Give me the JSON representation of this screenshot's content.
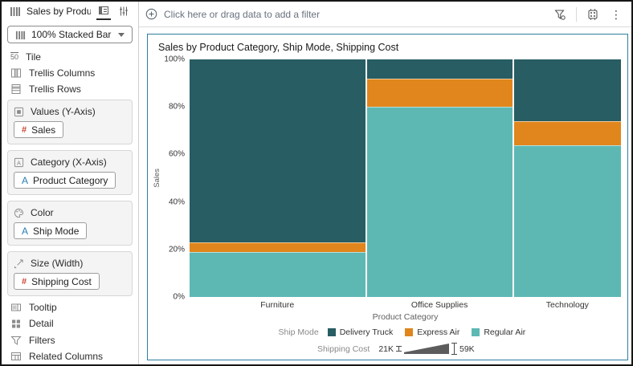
{
  "sidebar": {
    "title": "Sales by Product Ca...",
    "viz_type": "100% Stacked Bar",
    "rows_top": [
      "Tile",
      "Trellis Columns",
      "Trellis Rows"
    ],
    "tile_glyph": "50",
    "sections": [
      {
        "label": "Values (Y-Axis)",
        "pills": [
          {
            "text": "Sales",
            "glyph": "#",
            "type": "measure"
          }
        ]
      },
      {
        "label": "Category (X-Axis)",
        "pills": [
          {
            "text": "Product Category",
            "glyph": "A",
            "type": "attribute"
          }
        ]
      },
      {
        "label": "Color",
        "pills": [
          {
            "text": "Ship Mode",
            "glyph": "A",
            "type": "attribute"
          }
        ]
      },
      {
        "label": "Size (Width)",
        "pills": [
          {
            "text": "Shipping Cost",
            "glyph": "#",
            "type": "measure"
          }
        ]
      }
    ],
    "rows_bottom": [
      "Tooltip",
      "Detail",
      "Filters",
      "Related Columns"
    ]
  },
  "filter_bar": {
    "hint": "Click here or drag data to add a filter",
    "kebab_glyph": "⋮"
  },
  "colors": {
    "selected_viz_border": "#2e7f9e",
    "measure_icon": "#c74634",
    "attribute_icon": "#267db3"
  },
  "chart_data": {
    "type": "bar",
    "subtype": "100% stacked, variable-width (marimekko)",
    "title": "Sales by Product Category, Ship Mode, Shipping Cost",
    "categories": [
      "Furniture",
      "Office Supplies",
      "Technology"
    ],
    "series": [
      {
        "name": "Delivery Truck",
        "color": "#275d63",
        "values": [
          77,
          8,
          26
        ]
      },
      {
        "name": "Express Air",
        "color": "#e0861d",
        "values": [
          4,
          12,
          10
        ]
      },
      {
        "name": "Regular Air",
        "color": "#5db8b4",
        "values": [
          19,
          80,
          64
        ]
      }
    ],
    "bar_width_pct": [
      41,
      34,
      25
    ],
    "xlabel": "Product Category",
    "ylabel": "Sales",
    "ylim": [
      0,
      100
    ],
    "yticks": [
      "0%",
      "20%",
      "40%",
      "60%",
      "80%",
      "100%"
    ],
    "grid": false,
    "legend": {
      "position": "bottom",
      "color_label": "Ship Mode",
      "size_label": "Shipping Cost",
      "size_min": "21K",
      "size_max": "59K"
    }
  }
}
